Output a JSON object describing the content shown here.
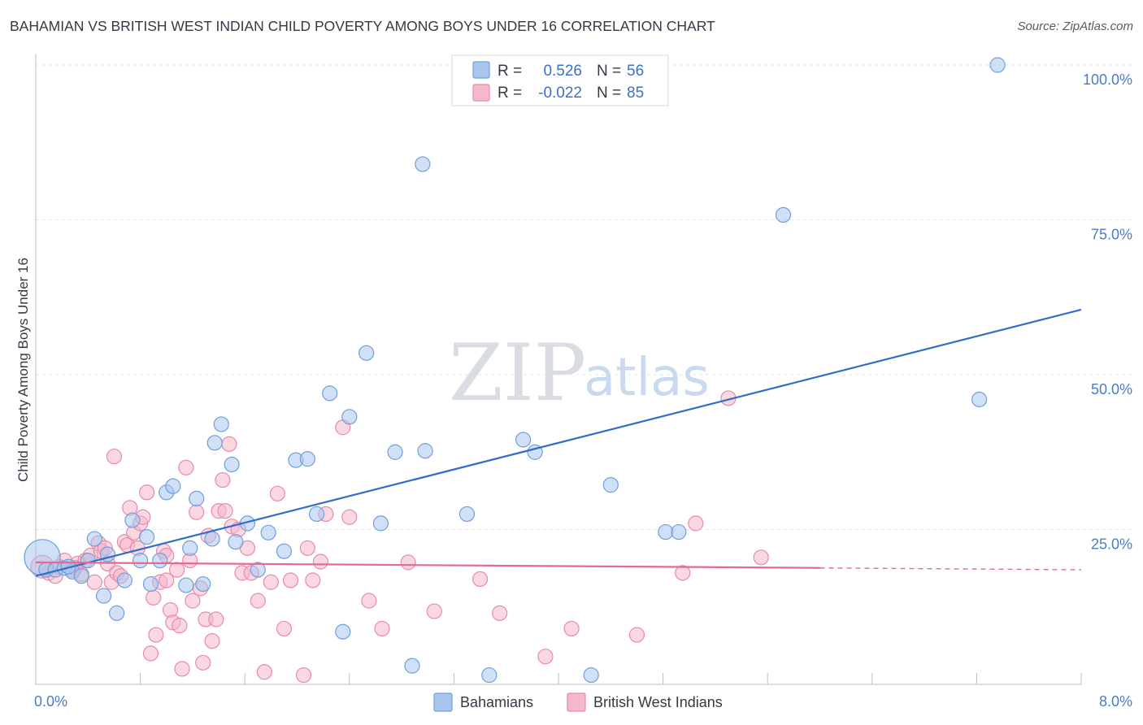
{
  "header": {
    "title": "BAHAMIAN VS BRITISH WEST INDIAN CHILD POVERTY AMONG BOYS UNDER 16 CORRELATION CHART",
    "source": "Source: ZipAtlas.com"
  },
  "watermark": {
    "zip": "ZIP",
    "atlas": "atlas"
  },
  "colors": {
    "blue_fill": "#aac6ee",
    "blue_stroke": "#6f9fdc",
    "blue_line": "#2f6fcb",
    "pink_fill": "#f5b8cb",
    "pink_stroke": "#e88aa8",
    "pink_line": "#e06b95",
    "grid": "#e3e6ea",
    "tick_text": "#4a7cc9"
  },
  "legend": {
    "rows": [
      {
        "r_label": "R =",
        "r_value": "0.526",
        "n_label": "N =",
        "n_value": "56"
      },
      {
        "r_label": "R =",
        "r_value": "-0.022",
        "n_label": "N =",
        "n_value": "85"
      }
    ]
  },
  "bottom_legend": {
    "items": [
      "Bahamians",
      "British West Indians"
    ]
  },
  "chart_data": {
    "type": "scatter",
    "title": "BAHAMIAN VS BRITISH WEST INDIAN CHILD POVERTY AMONG BOYS UNDER 16 CORRELATION CHART",
    "xlabel": "",
    "ylabel": "Child Poverty Among Boys Under 16",
    "xlim": [
      0,
      8
    ],
    "ylim": [
      0,
      100
    ],
    "x_tick_labels": [
      "0.0%",
      "8.0%"
    ],
    "y_ticks": [
      {
        "value": 25,
        "label": "25.0%"
      },
      {
        "value": 50,
        "label": "50.0%"
      },
      {
        "value": 75,
        "label": "75.0%"
      },
      {
        "value": 100,
        "label": "100.0%"
      }
    ],
    "grid": true,
    "legend_position": "top-center",
    "series": [
      {
        "name": "Bahamians",
        "r": 0.526,
        "n": 56,
        "trend": {
          "x0": 0,
          "y0": 17.5,
          "x1": 8,
          "y1": 60.5,
          "dashed_from": null
        },
        "points": [
          [
            0.05,
            20.5,
            22
          ],
          [
            0.08,
            18.5,
            9
          ],
          [
            0.15,
            18.5,
            9
          ],
          [
            0.22,
            18.8,
            9
          ],
          [
            0.28,
            18.2,
            9
          ],
          [
            0.35,
            17.5,
            9
          ],
          [
            0.4,
            20.0,
            9
          ],
          [
            0.45,
            23.5,
            9
          ],
          [
            0.52,
            14.3,
            9
          ],
          [
            0.55,
            21.0,
            9
          ],
          [
            0.62,
            11.5,
            9
          ],
          [
            0.68,
            16.8,
            9
          ],
          [
            0.74,
            26.5,
            9
          ],
          [
            0.8,
            20.0,
            9
          ],
          [
            0.85,
            23.8,
            9
          ],
          [
            0.88,
            16.2,
            9
          ],
          [
            0.95,
            20.0,
            9
          ],
          [
            1.0,
            31.0,
            9
          ],
          [
            1.05,
            32.0,
            9
          ],
          [
            1.15,
            16.0,
            9
          ],
          [
            1.18,
            22.0,
            9
          ],
          [
            1.23,
            30.0,
            9
          ],
          [
            1.28,
            16.2,
            9
          ],
          [
            1.35,
            23.5,
            9
          ],
          [
            1.37,
            39.0,
            9
          ],
          [
            1.42,
            42.0,
            9
          ],
          [
            1.5,
            35.5,
            9
          ],
          [
            1.53,
            23.0,
            9
          ],
          [
            1.62,
            26.0,
            9
          ],
          [
            1.7,
            18.5,
            9
          ],
          [
            1.78,
            24.5,
            9
          ],
          [
            1.9,
            21.5,
            9
          ],
          [
            1.99,
            36.2,
            9
          ],
          [
            2.08,
            36.4,
            9
          ],
          [
            2.15,
            27.5,
            9
          ],
          [
            2.25,
            47.0,
            9
          ],
          [
            2.35,
            8.5,
            9
          ],
          [
            2.4,
            43.2,
            9
          ],
          [
            2.53,
            53.5,
            9
          ],
          [
            2.64,
            26.0,
            9
          ],
          [
            2.75,
            37.5,
            9
          ],
          [
            2.88,
            3.0,
            9
          ],
          [
            2.96,
            84.0,
            9
          ],
          [
            2.98,
            37.7,
            9
          ],
          [
            3.3,
            27.5,
            9
          ],
          [
            3.47,
            1.5,
            9
          ],
          [
            3.73,
            39.5,
            9
          ],
          [
            3.82,
            37.5,
            9
          ],
          [
            4.25,
            1.5,
            9
          ],
          [
            4.4,
            32.2,
            9
          ],
          [
            4.82,
            24.6,
            9
          ],
          [
            4.92,
            24.6,
            9
          ],
          [
            5.72,
            75.8,
            9
          ],
          [
            7.22,
            46.0,
            9
          ],
          [
            7.36,
            100.0,
            9
          ],
          [
            0.25,
            19.0,
            9
          ]
        ]
      },
      {
        "name": "British West Indians",
        "r": -0.022,
        "n": 85,
        "trend": {
          "x0": 0,
          "y0": 19.7,
          "x1": 6.0,
          "y1": 18.8,
          "dashed_to": 8.0,
          "dashed_y": 18.5
        },
        "points": [
          [
            0.05,
            19.0,
            14
          ],
          [
            0.1,
            18.0,
            9
          ],
          [
            0.15,
            17.5,
            9
          ],
          [
            0.18,
            19.0,
            9
          ],
          [
            0.22,
            20.0,
            9
          ],
          [
            0.28,
            18.5,
            9
          ],
          [
            0.32,
            19.5,
            9
          ],
          [
            0.35,
            17.8,
            9
          ],
          [
            0.38,
            20.0,
            9
          ],
          [
            0.42,
            20.8,
            9
          ],
          [
            0.48,
            22.8,
            9
          ],
          [
            0.5,
            21.5,
            9
          ],
          [
            0.53,
            22.0,
            9
          ],
          [
            0.55,
            19.5,
            9
          ],
          [
            0.58,
            16.5,
            9
          ],
          [
            0.62,
            18.0,
            9
          ],
          [
            0.65,
            17.5,
            9
          ],
          [
            0.68,
            23.0,
            9
          ],
          [
            0.7,
            22.5,
            9
          ],
          [
            0.72,
            28.5,
            9
          ],
          [
            0.75,
            24.5,
            9
          ],
          [
            0.78,
            22.0,
            9
          ],
          [
            0.8,
            26.0,
            9
          ],
          [
            0.82,
            27.0,
            9
          ],
          [
            0.85,
            31.0,
            9
          ],
          [
            0.88,
            5.0,
            9
          ],
          [
            0.9,
            14.0,
            9
          ],
          [
            0.92,
            8.0,
            9
          ],
          [
            0.95,
            16.5,
            9
          ],
          [
            0.98,
            21.5,
            9
          ],
          [
            1.0,
            20.8,
            9
          ],
          [
            1.03,
            12.0,
            9
          ],
          [
            1.05,
            10.0,
            9
          ],
          [
            1.08,
            18.5,
            9
          ],
          [
            1.1,
            9.5,
            9
          ],
          [
            1.12,
            2.5,
            9
          ],
          [
            1.15,
            35.0,
            9
          ],
          [
            1.18,
            20.0,
            9
          ],
          [
            1.2,
            13.5,
            9
          ],
          [
            1.23,
            27.8,
            9
          ],
          [
            1.26,
            15.5,
            9
          ],
          [
            1.28,
            3.5,
            9
          ],
          [
            1.3,
            10.5,
            9
          ],
          [
            1.32,
            24.0,
            9
          ],
          [
            1.35,
            7.0,
            9
          ],
          [
            1.38,
            10.5,
            9
          ],
          [
            1.4,
            28.0,
            9
          ],
          [
            1.43,
            33.0,
            9
          ],
          [
            1.45,
            28.0,
            9
          ],
          [
            1.48,
            38.8,
            9
          ],
          [
            1.5,
            25.5,
            9
          ],
          [
            1.55,
            25.0,
            9
          ],
          [
            1.58,
            18.0,
            9
          ],
          [
            1.62,
            22.0,
            9
          ],
          [
            1.65,
            18.0,
            9
          ],
          [
            1.7,
            13.5,
            9
          ],
          [
            1.75,
            2.0,
            9
          ],
          [
            1.8,
            16.5,
            9
          ],
          [
            1.85,
            30.8,
            9
          ],
          [
            1.9,
            9.0,
            9
          ],
          [
            1.95,
            16.8,
            9
          ],
          [
            2.05,
            1.5,
            9
          ],
          [
            2.08,
            22.0,
            9
          ],
          [
            2.12,
            16.8,
            9
          ],
          [
            2.18,
            19.8,
            9
          ],
          [
            2.22,
            27.5,
            9
          ],
          [
            2.35,
            41.5,
            9
          ],
          [
            2.4,
            27.0,
            9
          ],
          [
            2.55,
            13.5,
            9
          ],
          [
            2.65,
            9.0,
            9
          ],
          [
            2.85,
            19.7,
            9
          ],
          [
            3.05,
            11.8,
            9
          ],
          [
            3.4,
            17.0,
            9
          ],
          [
            3.55,
            11.5,
            9
          ],
          [
            3.9,
            4.5,
            9
          ],
          [
            4.1,
            9.0,
            9
          ],
          [
            4.6,
            8.0,
            9
          ],
          [
            4.95,
            18.0,
            9
          ],
          [
            5.05,
            26.0,
            9
          ],
          [
            5.3,
            46.2,
            9
          ],
          [
            5.55,
            20.5,
            9
          ],
          [
            0.3,
            18.8,
            9
          ],
          [
            0.45,
            16.5,
            9
          ],
          [
            1.0,
            16.8,
            9
          ],
          [
            0.6,
            36.8,
            9
          ]
        ]
      }
    ]
  }
}
